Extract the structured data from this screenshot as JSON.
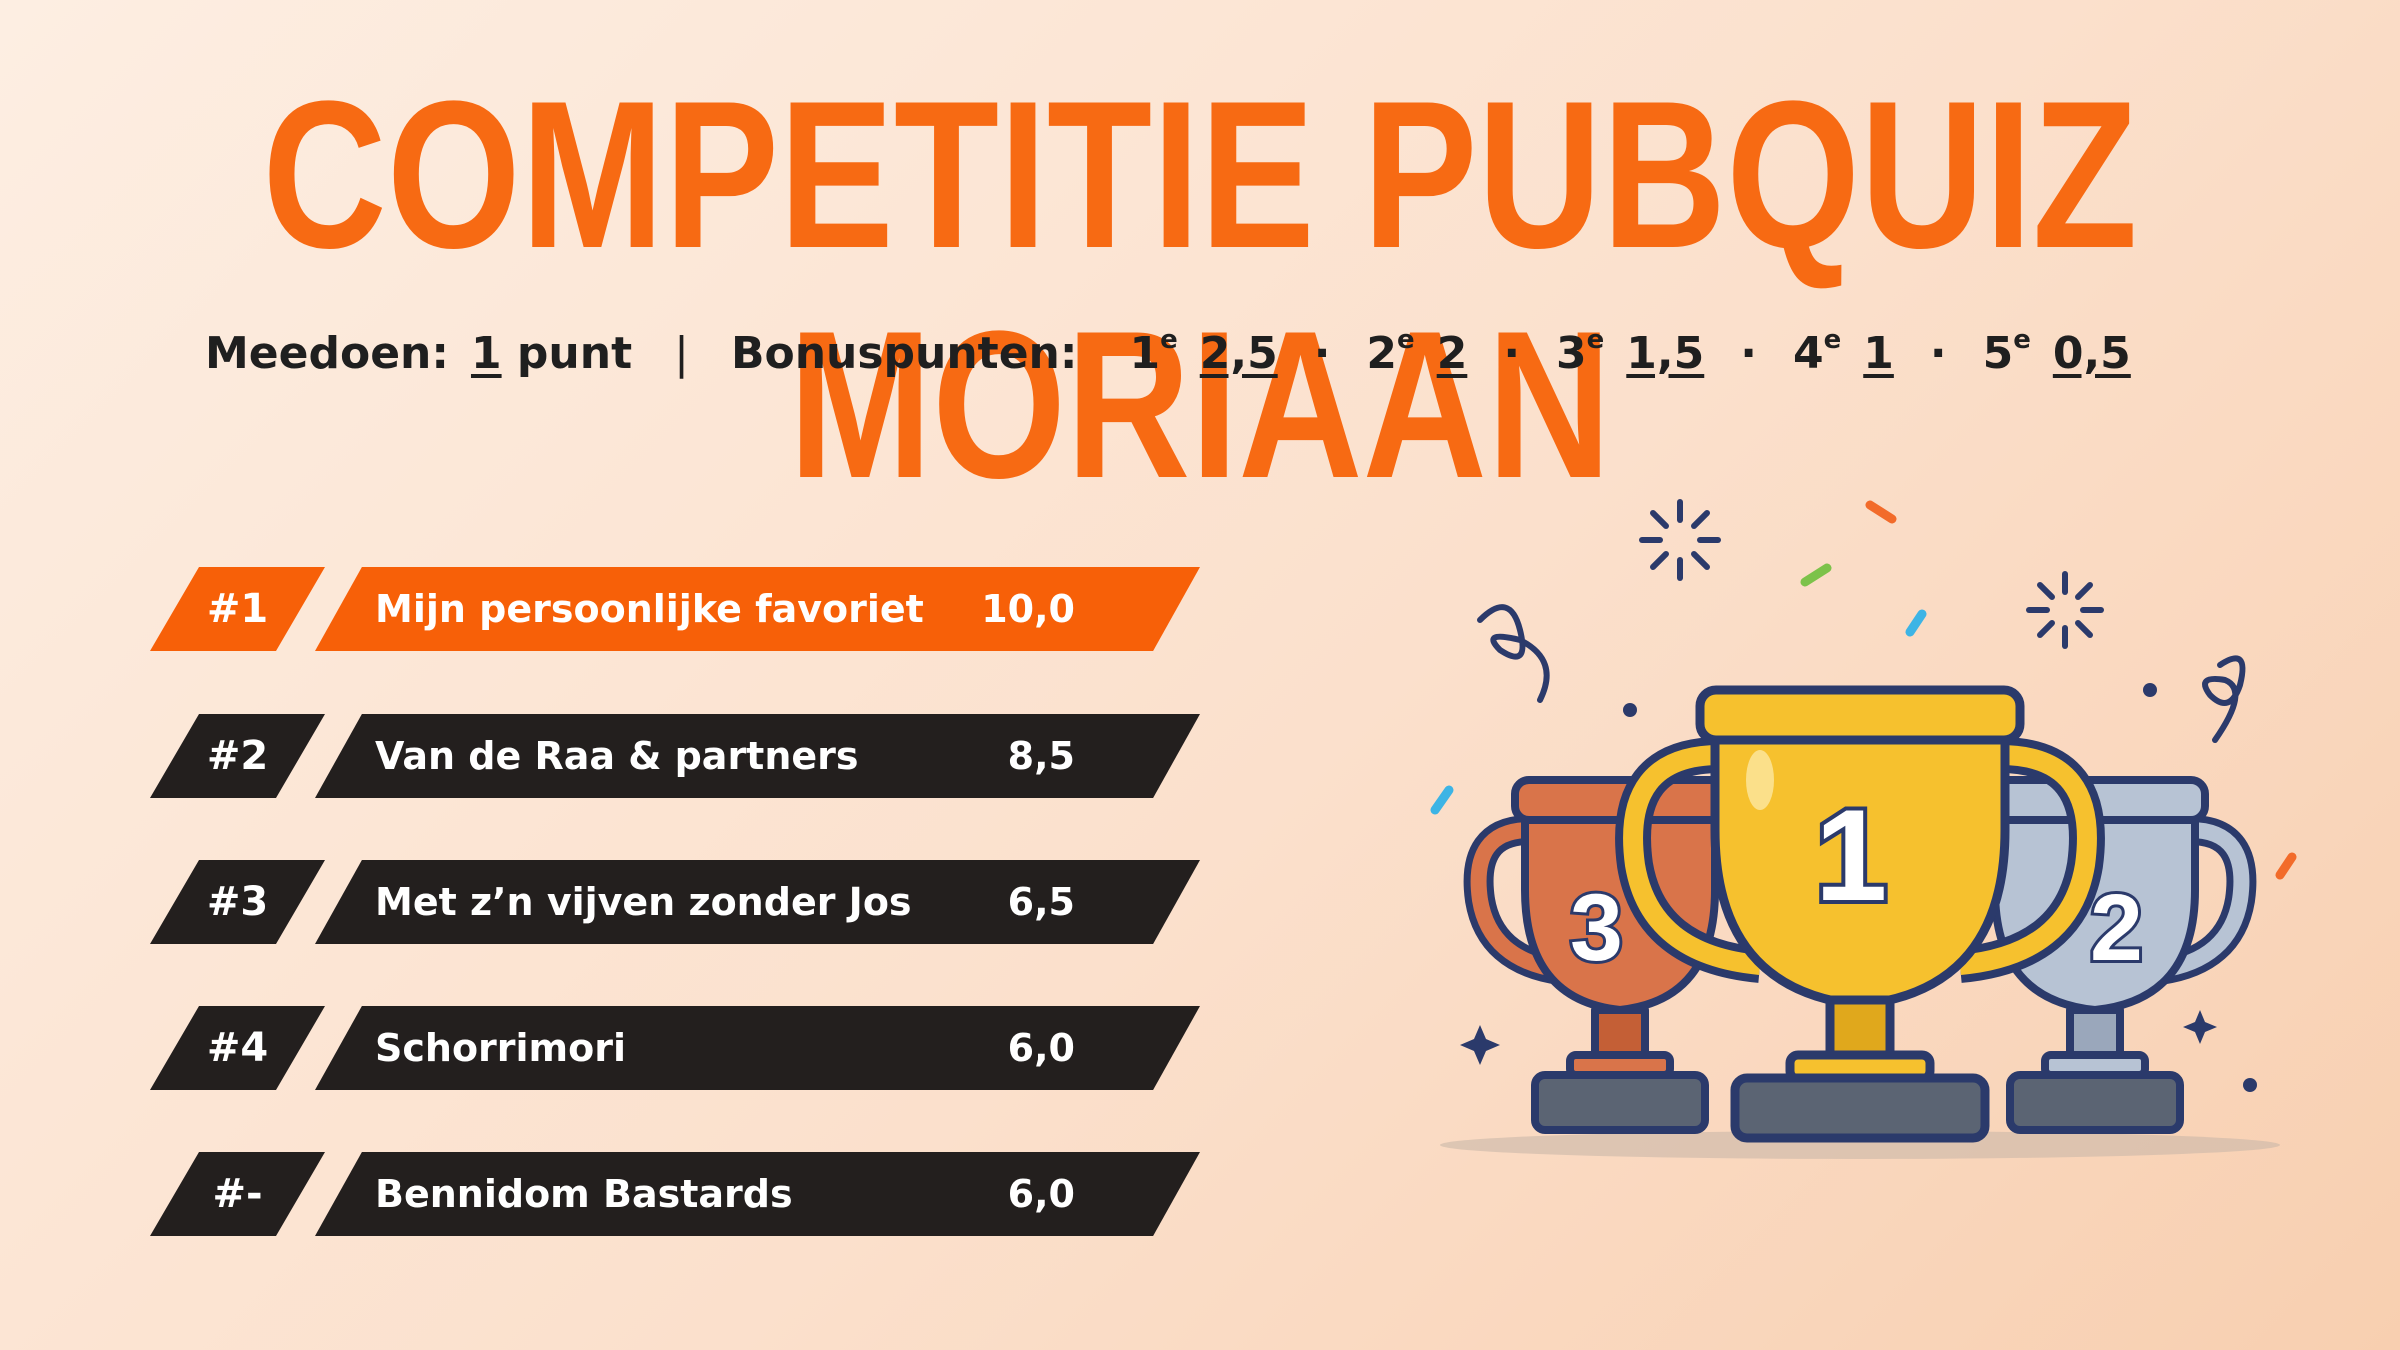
{
  "title": "COMPETITIE PUBQUIZ MORIAAN",
  "scoring": {
    "participation_label": "Meedoen:",
    "participation_value": "1",
    "participation_unit": "punt",
    "separator": "|",
    "bonus_label": "Bonuspunten:",
    "bonus": [
      {
        "place": "1",
        "suffix": "e",
        "points": "2,5"
      },
      {
        "place": "2",
        "suffix": "e",
        "points": "2"
      },
      {
        "place": "3",
        "suffix": "e",
        "points": "1,5"
      },
      {
        "place": "4",
        "suffix": "e",
        "points": "1"
      },
      {
        "place": "5",
        "suffix": "e",
        "points": "0,5"
      }
    ]
  },
  "standings": [
    {
      "rank": "#1",
      "team": "Mijn persoonlijke favoriet",
      "score": "10,0"
    },
    {
      "rank": "#2",
      "team": "Van de Raa & partners",
      "score": "8,5"
    },
    {
      "rank": "#3",
      "team": "Met z’n vijven zonder Jos",
      "score": "6,5"
    },
    {
      "rank": "#4",
      "team": "Schorrimori",
      "score": "6,0"
    },
    {
      "rank": "#-",
      "team": "Bennidom Bastards",
      "score": "6,0"
    }
  ],
  "trophies": {
    "first_label": "1",
    "second_label": "2",
    "third_label": "3",
    "icon": "trophy-podium-icon"
  },
  "colors": {
    "accent": "#f76008",
    "dark": "#231f1e",
    "gold": "#f6c12e",
    "silver": "#b7c3d4",
    "bronze": "#d9744a"
  }
}
